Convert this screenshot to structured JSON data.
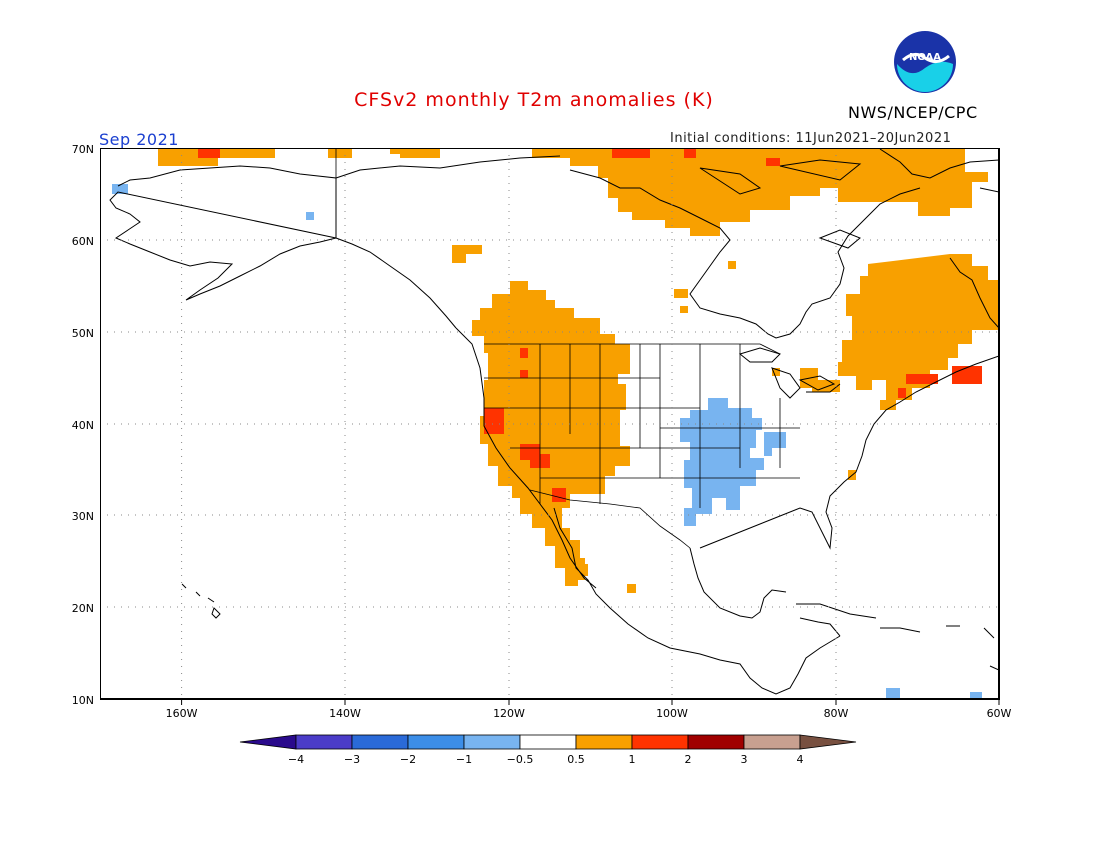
{
  "header": {
    "title": "CFSv2 monthly T2m anomalies (K)",
    "agency": "NWS/NCEP/CPC",
    "logo_text": "NOAA",
    "month": "Sep 2021",
    "initial_conditions": "Initial conditions: 11Jun2021–20Jun2021"
  },
  "map": {
    "lon_range": [
      -171,
      -60
    ],
    "lat_range": [
      10,
      70
    ],
    "lat_labels": [
      "70N",
      "60N",
      "50N",
      "40N",
      "30N",
      "20N",
      "10N"
    ],
    "lon_labels": [
      "160W",
      "140W",
      "120W",
      "100W",
      "80W",
      "60W"
    ],
    "gridlines": "dotted",
    "anomaly_regions": [
      {
        "name": "Western US",
        "level": "0.5-1",
        "color": "#f8a000"
      },
      {
        "name": "Northern Canada / Arctic",
        "level": "0.5-1",
        "color": "#f8a000"
      },
      {
        "name": "Eastern Canada / Quebec",
        "level": "0.5-1",
        "color": "#f8a000"
      },
      {
        "name": "Southwest US hotspots",
        "level": "1-2",
        "color": "#ff3300"
      },
      {
        "name": "Central US (Plains / Mississippi valley)",
        "level": "-1 to -0.5",
        "color": "#78b4f0"
      }
    ]
  },
  "colorbar": {
    "labels": [
      "−4",
      "−3",
      "−2",
      "−1",
      "−0.5",
      "0.5",
      "1",
      "2",
      "3",
      "4"
    ],
    "colors": [
      "#2a0a8c",
      "#4b3cc8",
      "#2a6ad8",
      "#3c8ee8",
      "#78b4f0",
      "#ffffff",
      "#f8a000",
      "#ff3300",
      "#a00000",
      "#c8a090",
      "#785040"
    ]
  }
}
